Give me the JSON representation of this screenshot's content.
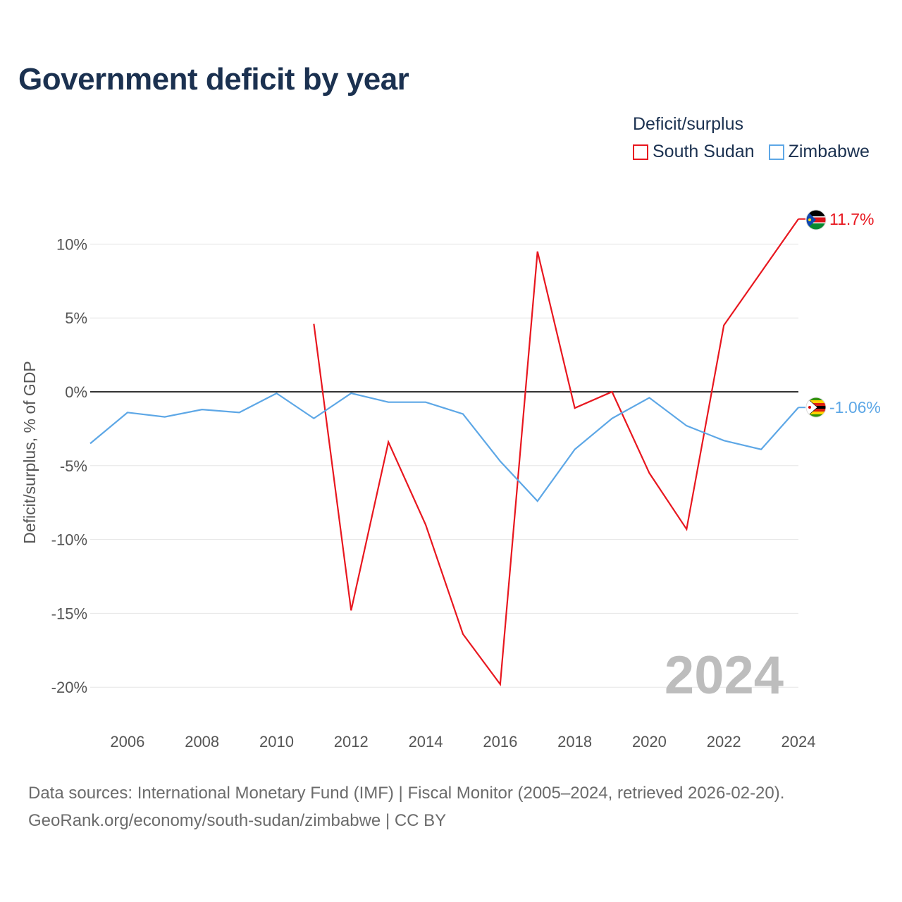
{
  "title": "Government deficit by year",
  "legend": {
    "title": "Deficit/surplus",
    "items": [
      {
        "name": "South Sudan",
        "color": "#e8171f"
      },
      {
        "name": "Zimbabwe",
        "color": "#5da7e6"
      }
    ]
  },
  "chart_data": {
    "type": "line",
    "title": "Government deficit by year",
    "xlabel": "",
    "ylabel": "Deficit/surplus, % of GDP",
    "x": [
      2005,
      2006,
      2007,
      2008,
      2009,
      2010,
      2011,
      2012,
      2013,
      2014,
      2015,
      2016,
      2017,
      2018,
      2019,
      2020,
      2021,
      2022,
      2023,
      2024
    ],
    "xlim": [
      2005,
      2024
    ],
    "ylim": [
      -21.5,
      12.5
    ],
    "yticks": [
      10,
      5,
      0,
      -5,
      -10,
      -15,
      -20
    ],
    "ytick_labels": [
      "10%",
      "5%",
      "0%",
      "-5%",
      "-10%",
      "-15%",
      "-20%"
    ],
    "xticks": [
      2006,
      2008,
      2010,
      2012,
      2014,
      2016,
      2018,
      2020,
      2022,
      2024
    ],
    "xtick_labels": [
      "2006",
      "2008",
      "2010",
      "2012",
      "2014",
      "2016",
      "2018",
      "2020",
      "2022",
      "2024"
    ],
    "series": [
      {
        "name": "South Sudan",
        "color": "#e8171f",
        "end_label": "11.7%",
        "values": [
          null,
          null,
          null,
          null,
          null,
          null,
          4.6,
          -14.8,
          -3.4,
          -9.0,
          -16.4,
          -19.8,
          9.5,
          -1.1,
          0.0,
          -5.5,
          -9.3,
          4.5,
          8.1,
          11.7
        ]
      },
      {
        "name": "Zimbabwe",
        "color": "#5da7e6",
        "end_label": "-1.06%",
        "values": [
          -3.5,
          -1.4,
          -1.7,
          -1.2,
          -1.4,
          -0.1,
          -1.8,
          -0.1,
          -0.7,
          -0.7,
          -1.5,
          -4.7,
          -7.4,
          -3.9,
          -1.8,
          -0.4,
          -2.3,
          -3.3,
          -3.9,
          -1.06
        ]
      }
    ],
    "watermark_year": "2024",
    "legend_position": "top-right",
    "grid": true
  },
  "footer": {
    "line1": "Data sources: International Monetary Fund (IMF) | Fiscal Monitor (2005–2024, retrieved 2026-02-20).",
    "line2": "GeoRank.org/economy/south-sudan/zimbabwe | CC BY"
  }
}
